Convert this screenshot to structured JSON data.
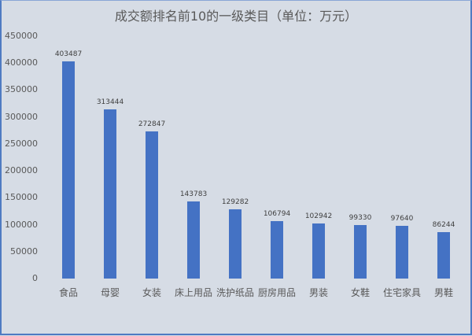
{
  "chart_data": {
    "type": "bar",
    "title": "成交额排名前10的一级类目（单位：万元）",
    "xlabel": "",
    "ylabel": "",
    "ylim": [
      0,
      450000
    ],
    "yticks": [
      "0",
      "50000",
      "100000",
      "150000",
      "200000",
      "250000",
      "300000",
      "350000",
      "400000",
      "450000"
    ],
    "grid": false,
    "legend": null,
    "categories": [
      "食品",
      "母婴",
      "女装",
      "床上用品",
      "洗护纸品",
      "厨房用品",
      "男装",
      "女鞋",
      "住宅家具",
      "男鞋"
    ],
    "values": [
      403487,
      313444,
      272847,
      143783,
      129282,
      106794,
      102942,
      99330,
      97640,
      86244
    ],
    "value_labels": [
      "403487",
      "313444",
      "272847",
      "143783",
      "129282",
      "106794",
      "102942",
      "99330",
      "97640",
      "86244"
    ],
    "bar_color": "#4472c4",
    "background_color": "#d6dce5"
  }
}
